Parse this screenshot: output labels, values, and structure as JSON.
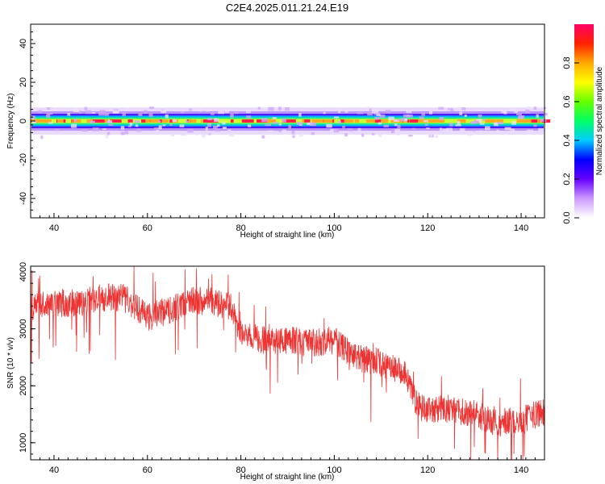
{
  "title": "C2E4.2025.011.21.24.E19",
  "chart_data": [
    {
      "type": "heatmap",
      "xlabel": "Height of straight line (km)",
      "ylabel": "Frequency (Hz)",
      "xlim": [
        35,
        145
      ],
      "ylim": [
        -50,
        50
      ],
      "x_ticks": [
        40,
        60,
        80,
        100,
        120,
        140
      ],
      "y_ticks": [
        40,
        20,
        0,
        -20,
        -40
      ],
      "band_center_hz": 0,
      "band_halfwidth_hz": 5,
      "colorbar": {
        "label": "Normalized spectral amplitude",
        "range": [
          0,
          1
        ],
        "ticks": [
          "0.0",
          "0.2",
          "0.4",
          "0.6",
          "0.8"
        ],
        "colormap": [
          "#ffffff",
          "#cc99ff",
          "#6600ff",
          "#0000ff",
          "#00ccff",
          "#00ff66",
          "#66ff00",
          "#ffff00",
          "#ffaa00",
          "#ff2200",
          "#ff0066"
        ]
      },
      "grid": false
    },
    {
      "type": "line",
      "xlabel": "Height of straight line (km)",
      "ylabel": "SNR (10 * v/v)",
      "xlim": [
        35,
        145
      ],
      "ylim": [
        700,
        4100
      ],
      "x_ticks": [
        40,
        60,
        80,
        100,
        120,
        140
      ],
      "y_ticks": [
        4000,
        3000,
        2000,
        1000
      ],
      "color": "#ee3333",
      "series": [
        {
          "x": [
            35,
            40,
            45,
            50,
            55,
            60,
            65,
            70,
            75,
            78,
            80,
            85,
            90,
            95,
            100,
            105,
            110,
            115,
            118,
            120,
            125,
            130,
            135,
            140,
            145
          ],
          "values": [
            3350,
            3450,
            3450,
            3550,
            3550,
            3200,
            3350,
            3500,
            3450,
            3400,
            2900,
            2800,
            2800,
            2750,
            2800,
            2500,
            2400,
            2200,
            1650,
            1550,
            1600,
            1500,
            1350,
            1400,
            1550
          ]
        }
      ],
      "grid": false
    }
  ]
}
